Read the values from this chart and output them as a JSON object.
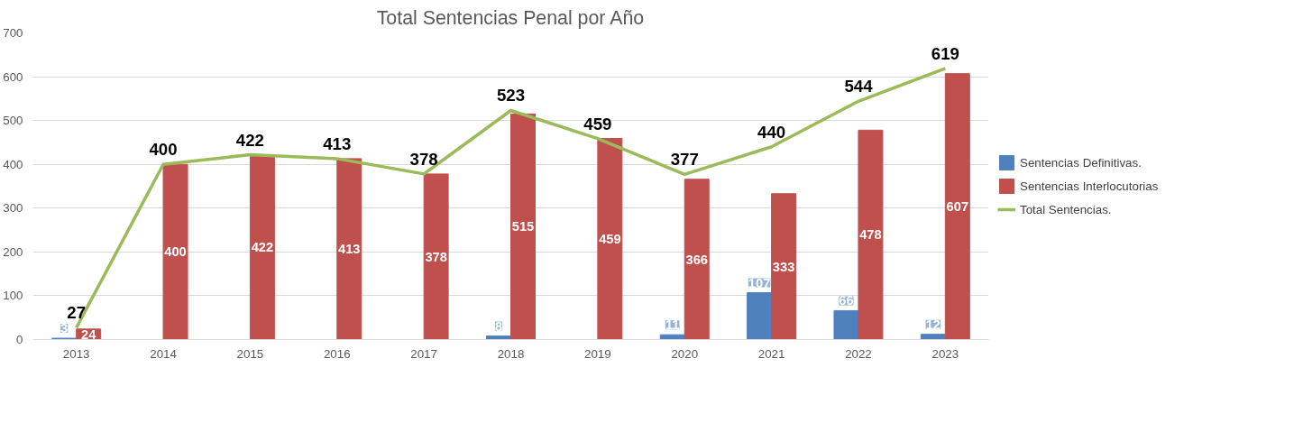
{
  "chart_data": {
    "type": "bar",
    "title": "Total Sentencias Penal por Año",
    "categories": [
      "2013",
      "2014",
      "2015",
      "2016",
      "2017",
      "2018",
      "2019",
      "2020",
      "2021",
      "2022",
      "2023"
    ],
    "series": [
      {
        "name": "Sentencias Definitivas.",
        "color": "#4f81bd",
        "values": [
          3,
          null,
          null,
          null,
          null,
          8,
          null,
          11,
          107,
          66,
          12
        ],
        "value_labels": [
          "3",
          null,
          null,
          null,
          null,
          "8",
          null,
          "11",
          "107",
          "66",
          "12"
        ]
      },
      {
        "name": "Sentencias Interlocutorias",
        "color": "#c0504d",
        "values": [
          24,
          400,
          422,
          413,
          378,
          515,
          459,
          366,
          333,
          478,
          607
        ],
        "value_labels": [
          "24",
          "400",
          "422",
          "413",
          "378",
          "515",
          "459",
          "366",
          "333",
          "478",
          "607"
        ]
      },
      {
        "name": "Total Sentencias.",
        "type": "line",
        "color": "#9bbb59",
        "values": [
          27,
          400,
          422,
          413,
          378,
          523,
          459,
          377,
          440,
          544,
          619
        ],
        "value_labels": [
          "27",
          "400",
          "422",
          "413",
          "378",
          "523",
          "459",
          "377",
          "440",
          "544",
          "619"
        ]
      }
    ],
    "ylim": [
      0,
      700
    ],
    "yticks": [
      0,
      100,
      200,
      300,
      400,
      500,
      600,
      700
    ],
    "grid": "y",
    "legend": "right"
  }
}
